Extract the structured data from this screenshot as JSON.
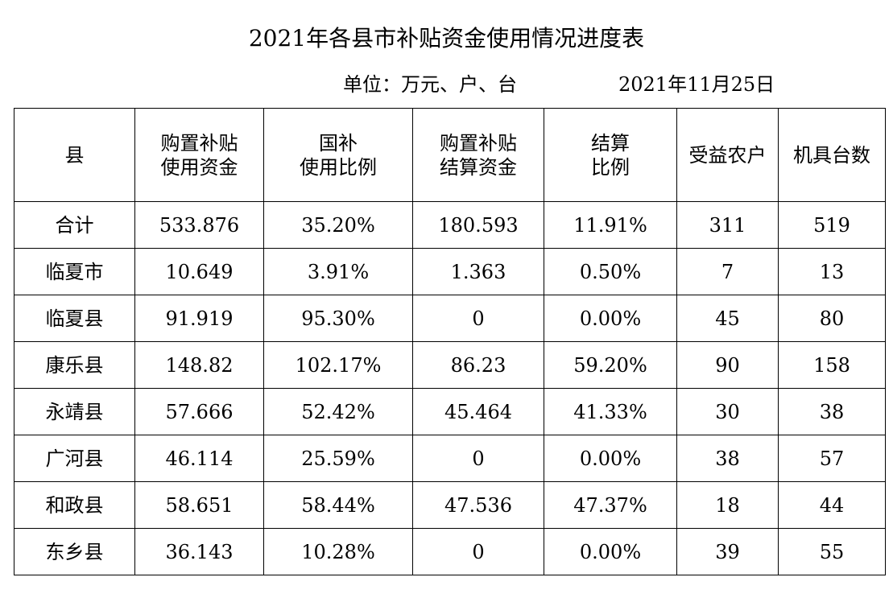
{
  "title": "2021年各县市补贴资金使用情况进度表",
  "meta": {
    "unit": "单位：万元、户、台",
    "date": "2021年11月25日"
  },
  "table": {
    "headers": [
      [
        "县"
      ],
      [
        "购置补贴",
        "使用资金"
      ],
      [
        "国补",
        "使用比例"
      ],
      [
        "购置补贴",
        "结算资金"
      ],
      [
        "结算",
        "比例"
      ],
      [
        "受益农户"
      ],
      [
        "机具台数"
      ]
    ],
    "rows": [
      [
        "合计",
        "533.876",
        "35.20%",
        "180.593",
        "11.91%",
        "311",
        "519"
      ],
      [
        "临夏市",
        "10.649",
        "3.91%",
        "1.363",
        "0.50%",
        "7",
        "13"
      ],
      [
        "临夏县",
        "91.919",
        "95.30%",
        "0",
        "0.00%",
        "45",
        "80"
      ],
      [
        "康乐县",
        "148.82",
        "102.17%",
        "86.23",
        "59.20%",
        "90",
        "158"
      ],
      [
        "永靖县",
        "57.666",
        "52.42%",
        "45.464",
        "41.33%",
        "30",
        "38"
      ],
      [
        "广河县",
        "46.114",
        "25.59%",
        "0",
        "0.00%",
        "38",
        "57"
      ],
      [
        "和政县",
        "58.651",
        "58.44%",
        "47.536",
        "47.37%",
        "18",
        "44"
      ],
      [
        "东乡县",
        "36.143",
        "10.28%",
        "0",
        "0.00%",
        "39",
        "55"
      ]
    ]
  }
}
